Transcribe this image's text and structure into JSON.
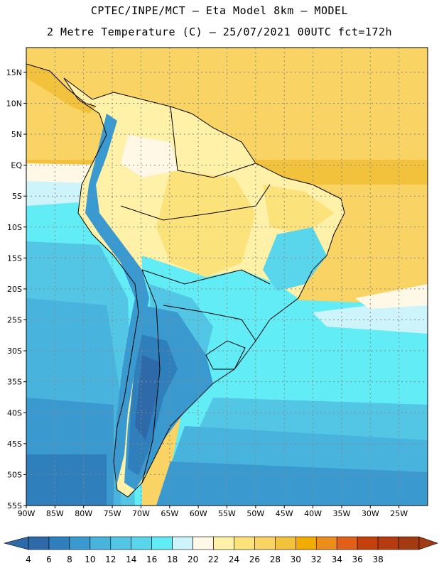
{
  "header": {
    "line1": "CPTEC/INPE/MCT –  Eta Model 8km – MODEL",
    "line2": "2 Metre Temperature (C) – 25/07/2021 00UTC fct=172h"
  },
  "map": {
    "lon_range": [
      -90,
      -20
    ],
    "lat_range": [
      -55,
      19
    ],
    "lon_ticks": [
      {
        "v": -90,
        "label": "90W"
      },
      {
        "v": -85,
        "label": "85W"
      },
      {
        "v": -80,
        "label": "80W"
      },
      {
        "v": -75,
        "label": "75W"
      },
      {
        "v": -70,
        "label": "70W"
      },
      {
        "v": -65,
        "label": "65W"
      },
      {
        "v": -60,
        "label": "60W"
      },
      {
        "v": -55,
        "label": "55W"
      },
      {
        "v": -50,
        "label": "50W"
      },
      {
        "v": -45,
        "label": "45W"
      },
      {
        "v": -40,
        "label": "40W"
      },
      {
        "v": -35,
        "label": "35W"
      },
      {
        "v": -30,
        "label": "30W"
      },
      {
        "v": -25,
        "label": "25W"
      }
    ],
    "lat_ticks": [
      {
        "v": 15,
        "label": "15N"
      },
      {
        "v": 10,
        "label": "10N"
      },
      {
        "v": 5,
        "label": "5N"
      },
      {
        "v": 0,
        "label": "EQ"
      },
      {
        "v": -5,
        "label": "5S"
      },
      {
        "v": -10,
        "label": "10S"
      },
      {
        "v": -15,
        "label": "15S"
      },
      {
        "v": -20,
        "label": "20S"
      },
      {
        "v": -25,
        "label": "25S"
      },
      {
        "v": -30,
        "label": "30S"
      },
      {
        "v": -35,
        "label": "35S"
      },
      {
        "v": -40,
        "label": "40S"
      },
      {
        "v": -45,
        "label": "45S"
      },
      {
        "v": -50,
        "label": "50S"
      },
      {
        "v": -55,
        "label": "55S"
      }
    ]
  },
  "legend": {
    "labels": [
      "4",
      "6",
      "8",
      "10",
      "12",
      "14",
      "16",
      "18",
      "20",
      "22",
      "24",
      "26",
      "28",
      "30",
      "32",
      "34",
      "36",
      "38"
    ],
    "colors": [
      "#2e6aaa",
      "#2f7fbc",
      "#3a9ad0",
      "#48b3dc",
      "#52c6e4",
      "#5ad6ec",
      "#62ecf6",
      "#cdf4fb",
      "#fff8e6",
      "#fff1a8",
      "#fce27a",
      "#f9d363",
      "#f2c23c",
      "#f2ab00",
      "#ee8d1c",
      "#e0601a",
      "#c4400c",
      "#b43c10",
      "#a23a12"
    ]
  }
}
